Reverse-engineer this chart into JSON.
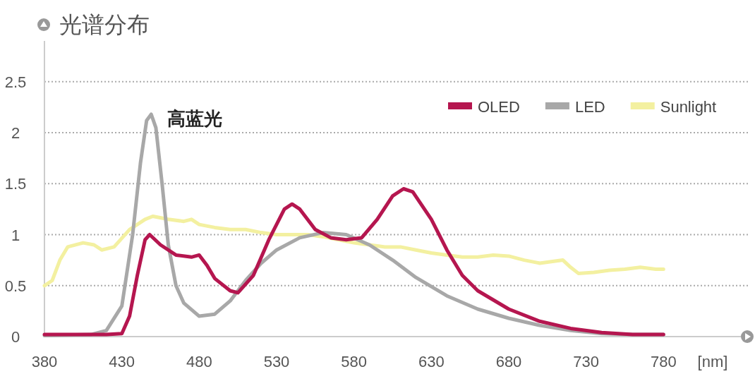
{
  "chart_data": {
    "type": "line",
    "title": "光谱分布",
    "xlabel": "[nm]",
    "annotations": [
      {
        "text": "高蓝光",
        "x": 448,
        "y": 2.18
      }
    ],
    "xlim": [
      380,
      830
    ],
    "ylim": [
      0,
      2.9
    ],
    "xticks": [
      380,
      430,
      480,
      530,
      580,
      630,
      680,
      730,
      780
    ],
    "yticks": [
      0,
      0.5,
      1,
      {
        "value": 1.5,
        "label": "1.5"
      },
      2,
      {
        "value": 2.5,
        "label": "2.5"
      }
    ],
    "grid": "y",
    "legend": "top right",
    "marker": "none",
    "line_style": "solid",
    "series": [
      {
        "name": "Sunlight",
        "color": "#f3f0a0",
        "x": [
          380,
          385,
          390,
          395,
          405,
          412,
          417,
          425,
          435,
          445,
          450,
          460,
          470,
          475,
          480,
          490,
          500,
          510,
          520,
          530,
          540,
          550,
          560,
          570,
          580,
          590,
          600,
          610,
          620,
          630,
          640,
          650,
          660,
          670,
          680,
          690,
          700,
          710,
          715,
          720,
          725,
          735,
          745,
          755,
          765,
          775,
          780
        ],
        "values": [
          0.5,
          0.55,
          0.75,
          0.88,
          0.92,
          0.9,
          0.85,
          0.88,
          1.05,
          1.15,
          1.18,
          1.15,
          1.13,
          1.15,
          1.1,
          1.07,
          1.05,
          1.05,
          1.02,
          1.0,
          1.0,
          1.0,
          0.98,
          0.95,
          0.92,
          0.9,
          0.88,
          0.88,
          0.85,
          0.82,
          0.8,
          0.78,
          0.78,
          0.8,
          0.79,
          0.75,
          0.72,
          0.74,
          0.75,
          0.68,
          0.62,
          0.63,
          0.65,
          0.66,
          0.68,
          0.66,
          0.66
        ]
      },
      {
        "name": "LED",
        "color": "#a8a8a8",
        "x": [
          380,
          410,
          420,
          430,
          437,
          442,
          446,
          449,
          452,
          456,
          460,
          465,
          470,
          480,
          490,
          500,
          510,
          520,
          530,
          545,
          560,
          575,
          590,
          605,
          620,
          640,
          660,
          680,
          700,
          720,
          740,
          760,
          780
        ],
        "values": [
          0.01,
          0.02,
          0.06,
          0.3,
          1.0,
          1.7,
          2.12,
          2.18,
          2.05,
          1.5,
          0.9,
          0.5,
          0.33,
          0.2,
          0.22,
          0.35,
          0.55,
          0.72,
          0.85,
          0.97,
          1.02,
          1.0,
          0.9,
          0.75,
          0.58,
          0.4,
          0.27,
          0.18,
          0.11,
          0.06,
          0.03,
          0.02,
          0.02
        ]
      },
      {
        "name": "OLED",
        "color": "#b5164f",
        "x": [
          380,
          420,
          430,
          435,
          440,
          445,
          448,
          455,
          465,
          475,
          480,
          485,
          490,
          500,
          505,
          515,
          525,
          535,
          540,
          545,
          555,
          565,
          575,
          585,
          595,
          605,
          612,
          618,
          630,
          640,
          650,
          660,
          680,
          700,
          720,
          740,
          760,
          780
        ],
        "values": [
          0.02,
          0.02,
          0.03,
          0.2,
          0.6,
          0.95,
          1.0,
          0.9,
          0.8,
          0.78,
          0.8,
          0.7,
          0.57,
          0.45,
          0.43,
          0.6,
          0.95,
          1.25,
          1.3,
          1.25,
          1.05,
          0.97,
          0.95,
          0.97,
          1.15,
          1.38,
          1.45,
          1.42,
          1.15,
          0.85,
          0.6,
          0.45,
          0.27,
          0.15,
          0.08,
          0.04,
          0.02,
          0.02
        ]
      }
    ]
  }
}
